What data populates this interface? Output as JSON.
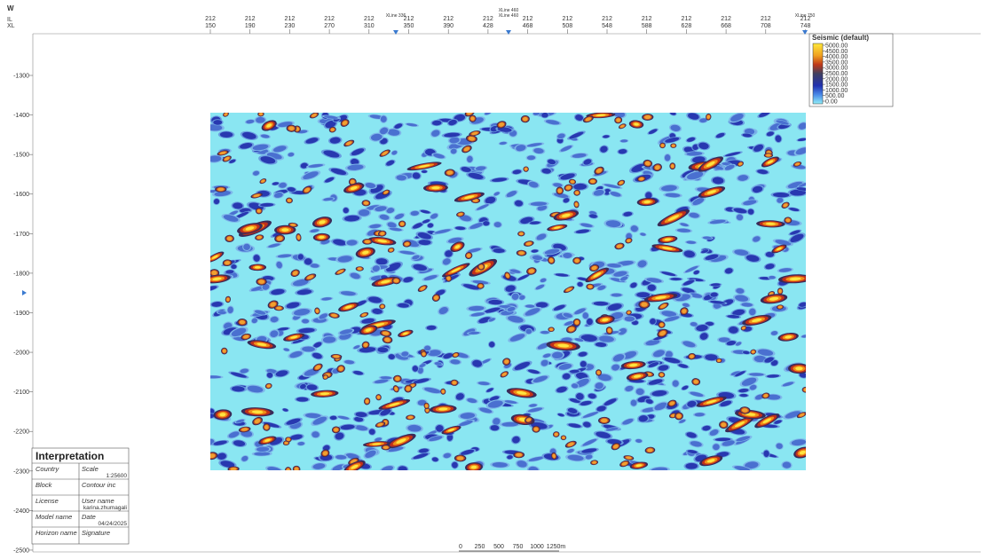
{
  "header": {
    "direction": "W",
    "il_label": "IL",
    "xl_label": "XL"
  },
  "top_axis": [
    {
      "il": "212",
      "xl": "150"
    },
    {
      "il": "212",
      "xl": "190"
    },
    {
      "il": "212",
      "xl": "230"
    },
    {
      "il": "212",
      "xl": "270"
    },
    {
      "il": "212",
      "xl": "310"
    },
    {
      "il": "212",
      "xl": "350"
    },
    {
      "il": "212",
      "xl": "390"
    },
    {
      "il": "212",
      "xl": "428"
    },
    {
      "il": "212",
      "xl": "468"
    },
    {
      "il": "212",
      "xl": "508"
    },
    {
      "il": "212",
      "xl": "548"
    },
    {
      "il": "212",
      "xl": "588"
    },
    {
      "il": "212",
      "xl": "628"
    },
    {
      "il": "212",
      "xl": "668"
    },
    {
      "il": "212",
      "xl": "708"
    },
    {
      "il": "212",
      "xl": "748"
    }
  ],
  "markers": [
    {
      "lines": [
        "XLine 336"
      ]
    },
    {
      "lines": [
        "XLine 460",
        "XLine 460"
      ]
    },
    {
      "lines": [
        "XLine 750"
      ]
    }
  ],
  "depth_axis": [
    "-1300",
    "-1400",
    "-1500",
    "-1600",
    "-1700",
    "-1800",
    "-1900",
    "-2000",
    "-2100",
    "-2200",
    "-2300",
    "-2400",
    "-2500"
  ],
  "legend": {
    "title": "Seismic (default)",
    "entries": [
      "5000.00",
      "4500.00",
      "4000.00",
      "3500.00",
      "3000.00",
      "2500.00",
      "2000.00",
      "1500.00",
      "1000.00",
      "500.00",
      "0.00"
    ]
  },
  "interpretation": {
    "title": "Interpretation",
    "rows": [
      [
        "Country",
        "Scale",
        "1:25600"
      ],
      [
        "Block",
        "Contour inc",
        ""
      ],
      [
        "License",
        "User name",
        "karina.zhumagali"
      ],
      [
        "Model name",
        "Date",
        "04/24/2025"
      ],
      [
        "Horizon name",
        "Signature",
        ""
      ]
    ]
  },
  "scale_bar": [
    "0",
    "250",
    "500",
    "750",
    "1000",
    "1250m"
  ]
}
